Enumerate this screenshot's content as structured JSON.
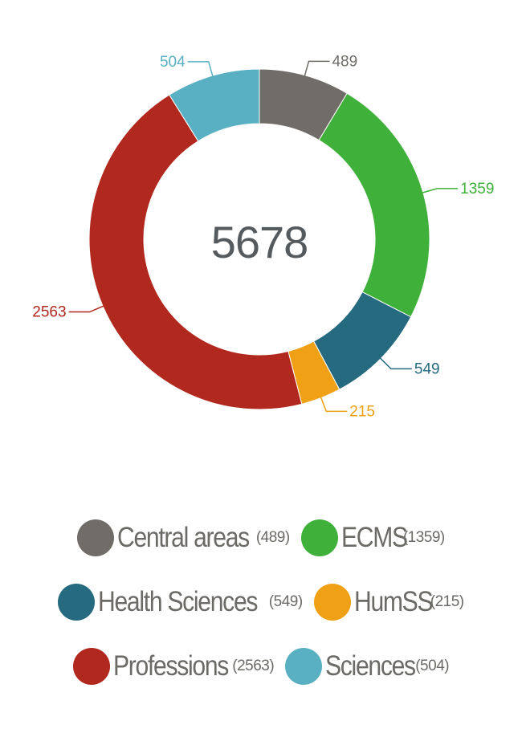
{
  "chart_data": {
    "type": "pie",
    "variant": "donut",
    "total_label": "5678",
    "slices": [
      {
        "name": "Central areas",
        "value": 489,
        "label": "489",
        "count_text": "(489)",
        "color": "#706d68"
      },
      {
        "name": "ECMS",
        "value": 1359,
        "label": "1359",
        "count_text": "(1359)",
        "color": "#3fb03a"
      },
      {
        "name": "Health Sciences",
        "value": 549,
        "label": "549",
        "count_text": "(549)",
        "color": "#266a7f"
      },
      {
        "name": "HumSS",
        "value": 215,
        "label": "215",
        "count_text": "(215)",
        "color": "#f0a015"
      },
      {
        "name": "Professions",
        "value": 2563,
        "label": "2563",
        "count_text": "(2563)",
        "color": "#b1281f"
      },
      {
        "name": "Sciences",
        "value": 504,
        "label": "504",
        "count_text": "(504)",
        "color": "#59b0c3"
      }
    ],
    "legend_placement": "bottom"
  }
}
